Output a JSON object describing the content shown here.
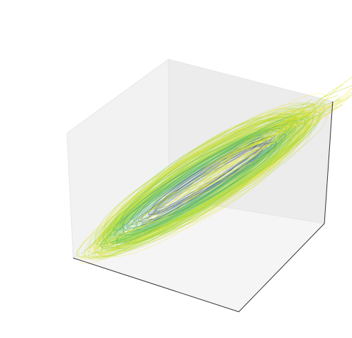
{
  "chart_data": {
    "type": "line",
    "projection": "3d",
    "title": "",
    "xlabel": "",
    "ylabel": "",
    "zlabel": "",
    "ticks_visible": false,
    "grid": false,
    "legend": "none",
    "pane_colors": {
      "back_left": "#f2f2f2",
      "back_right": "#ebebeb",
      "floor": "#f5f5f5",
      "edge": "#e2e2e2",
      "axis_line": "#333333"
    },
    "colormap": "viridis",
    "colormap_stops": [
      "#440154",
      "#31688e",
      "#35b779",
      "#90d743",
      "#fde725"
    ],
    "line_alpha": 0.35,
    "description_of_shape": "dense bundle of looping trajectories forming an elongated ellipsoidal cloud tilted along the diagonal",
    "series": [
      {
        "values_shape": "trajectory loops",
        "axes_ranges": {
          "x": [
            -1,
            1
          ],
          "y": [
            -1,
            1
          ],
          "z": [
            -1,
            1
          ]
        }
      }
    ]
  }
}
